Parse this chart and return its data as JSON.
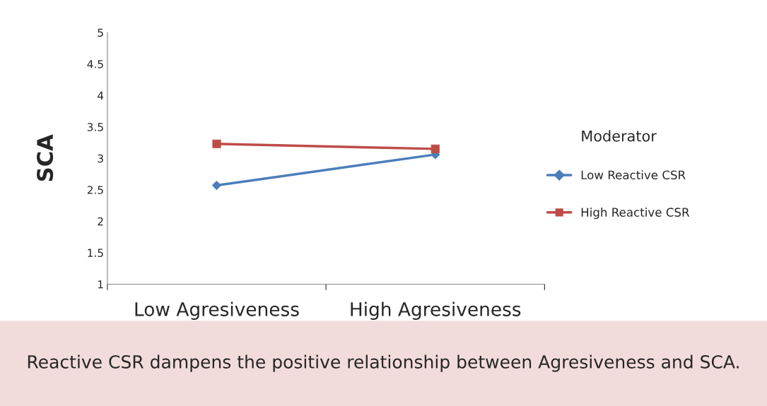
{
  "chart_data": {
    "type": "line",
    "categories": [
      "Low Agresiveness",
      "High Agresiveness"
    ],
    "ylabel": "SCA",
    "legend_title": "Moderator",
    "series": [
      {
        "name": "Low Reactive CSR",
        "color": "#4a7ebb",
        "values": [
          2.57,
          3.06
        ],
        "marker": "diamond"
      },
      {
        "name": "High Reactive CSR",
        "color": "#be4b48",
        "values": [
          3.23,
          3.15
        ],
        "marker": "square"
      }
    ],
    "ylim": [
      1,
      5
    ],
    "yticks": [
      1,
      1.5,
      2,
      2.5,
      3,
      3.5,
      4,
      4.5,
      5
    ],
    "grid": false,
    "legend": "right",
    "annotations": [
      "Reactive CSR dampens the positive relationship between Agresiveness and SCA."
    ]
  }
}
